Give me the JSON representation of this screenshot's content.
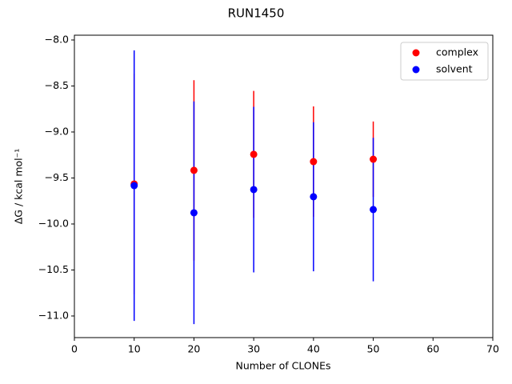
{
  "chart_data": {
    "type": "errorbar-scatter",
    "title": "RUN1450",
    "xlabel": "Number of CLONEs",
    "ylabel": "ΔG / kcal mol⁻¹",
    "x": [
      10,
      20,
      30,
      40,
      50
    ],
    "series": [
      {
        "name": "complex",
        "color": "#ff0000",
        "values": [
          -9.565,
          -9.417,
          -9.243,
          -9.322,
          -9.296
        ],
        "errors": [
          1.2,
          0.98,
          0.69,
          0.6,
          0.41
        ]
      },
      {
        "name": "solvent",
        "color": "#0000ff",
        "values": [
          -9.583,
          -9.878,
          -9.626,
          -9.704,
          -9.843
        ],
        "errors": [
          1.47,
          1.21,
          0.9,
          0.81,
          0.78
        ]
      }
    ],
    "xlim": [
      0,
      70
    ],
    "xticks": [
      0,
      10,
      20,
      30,
      40,
      50,
      60,
      70
    ],
    "ylim": [
      -11.235,
      -7.948
    ],
    "yticks": [
      {
        "value": -11.0,
        "label": "−11.0"
      },
      {
        "value": -10.5,
        "label": "−10.5"
      },
      {
        "value": -10.0,
        "label": "−10.0"
      },
      {
        "value": -9.5,
        "label": "−9.5"
      },
      {
        "value": -9.0,
        "label": "−9.0"
      },
      {
        "value": -8.5,
        "label": "−8.5"
      },
      {
        "value": -8.0,
        "label": "−8.0"
      }
    ],
    "legend": "upper right"
  }
}
